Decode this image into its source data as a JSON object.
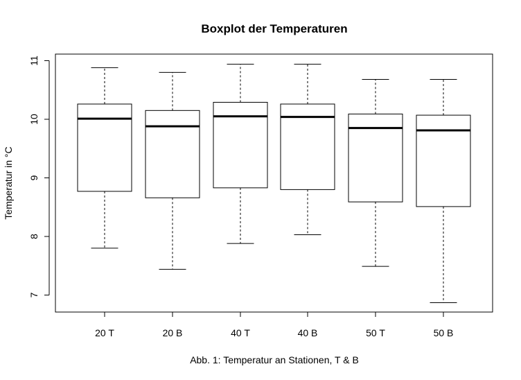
{
  "chart_data": {
    "type": "boxplot",
    "title": "Boxplot der Temperaturen",
    "xlabel": "Abb. 1: Temperatur an Stationen, T & B",
    "ylabel": "Temperatur in °C",
    "ylim": [
      6.75,
      11.1
    ],
    "yticks": [
      7,
      8,
      9,
      10,
      11
    ],
    "ytick_labels": [
      "7",
      "8",
      "9",
      "10",
      "11"
    ],
    "grid": false,
    "categories": [
      "20 T",
      "20 B",
      "40 T",
      "40 B",
      "50 T",
      "50 B"
    ],
    "boxes": [
      {
        "label": "20 T",
        "min": 7.8,
        "q1": 8.77,
        "median": 10.01,
        "q3": 10.26,
        "max": 10.88
      },
      {
        "label": "20 B",
        "min": 7.44,
        "q1": 8.66,
        "median": 9.88,
        "q3": 10.15,
        "max": 10.8
      },
      {
        "label": "40 T",
        "min": 7.88,
        "q1": 8.83,
        "median": 10.05,
        "q3": 10.29,
        "max": 10.94
      },
      {
        "label": "40 B",
        "min": 8.03,
        "q1": 8.8,
        "median": 10.04,
        "q3": 10.26,
        "max": 10.94
      },
      {
        "label": "50 T",
        "min": 7.49,
        "q1": 8.59,
        "median": 9.85,
        "q3": 10.09,
        "max": 10.68
      },
      {
        "label": "50 B",
        "min": 6.87,
        "q1": 8.51,
        "median": 9.81,
        "q3": 10.07,
        "max": 10.68
      }
    ],
    "colors": {
      "stroke": "#000000",
      "box_fill": "#ffffff"
    }
  }
}
